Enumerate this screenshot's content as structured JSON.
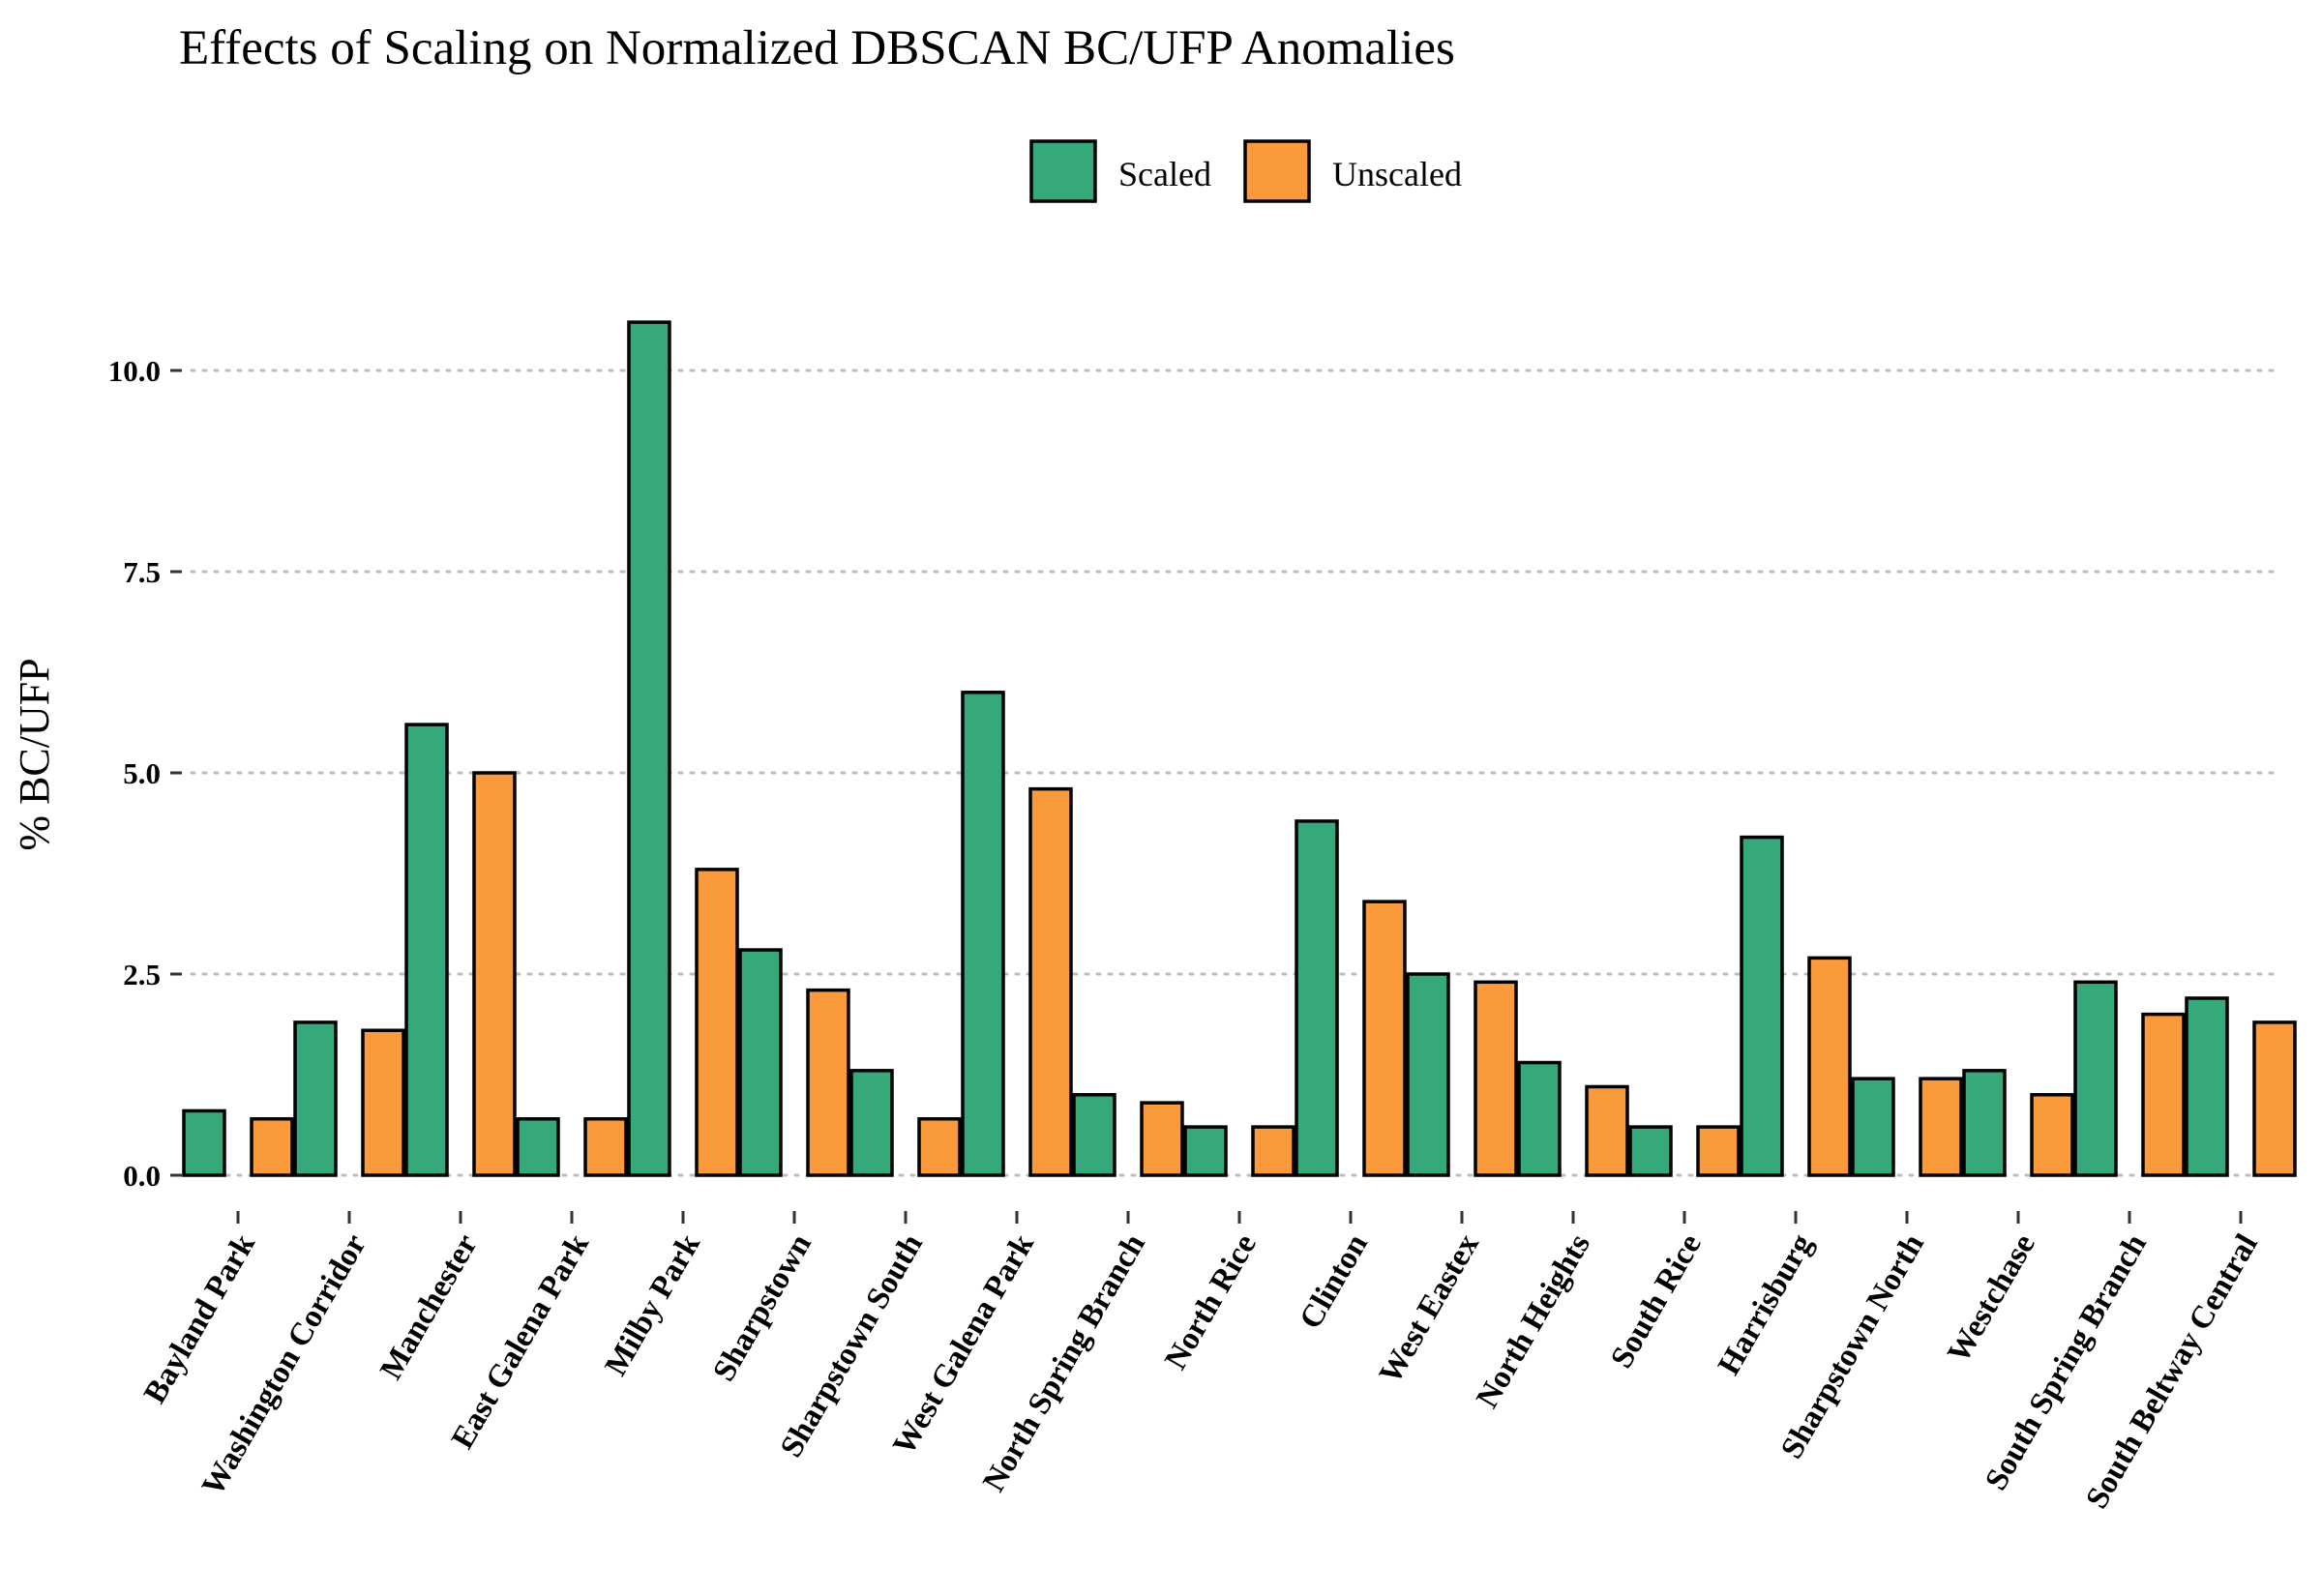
{
  "chart_data": {
    "type": "bar",
    "title": "Effects of Scaling on Normalized DBSCAN BC/UFP Anomalies",
    "xlabel": "",
    "ylabel": "% BC/UFP",
    "ylim": [
      0,
      11
    ],
    "yticks": [
      0,
      2.5,
      5,
      7.5,
      10
    ],
    "ytick_labels": [
      "0.0",
      "2.5",
      "5.0",
      "7.5",
      "10.0"
    ],
    "grid": "horizontal-dotted",
    "legend_position": "top-center",
    "categories": [
      "Bayland Park",
      "Washington Corridor",
      "Manchester",
      "East Galena Park",
      "Milby Park",
      "Sharpstown",
      "Sharpstown South",
      "West Galena Park",
      "North Spring Branch",
      "North Rice",
      "Clinton",
      "West Eastex",
      "North Heights",
      "South Rice",
      "Harrisburg",
      "Sharpstown North",
      "Westchase",
      "South Spring Branch",
      "South Beltway Central"
    ],
    "series": [
      {
        "name": "Scaled",
        "color": "#35a97a",
        "values": [
          0.8,
          1.9,
          5.6,
          0.7,
          10.6,
          2.8,
          1.3,
          6.0,
          1.0,
          0.6,
          4.4,
          2.5,
          1.4,
          0.6,
          4.2,
          1.2,
          1.3,
          2.4,
          2.2
        ]
      },
      {
        "name": "Unscaled",
        "color": "#fb9a3a",
        "values": [
          0.7,
          1.8,
          5.0,
          0.7,
          3.8,
          2.3,
          0.7,
          4.8,
          0.9,
          0.6,
          3.4,
          2.4,
          1.1,
          0.6,
          2.7,
          1.2,
          1.0,
          2.0,
          1.9
        ]
      }
    ]
  }
}
